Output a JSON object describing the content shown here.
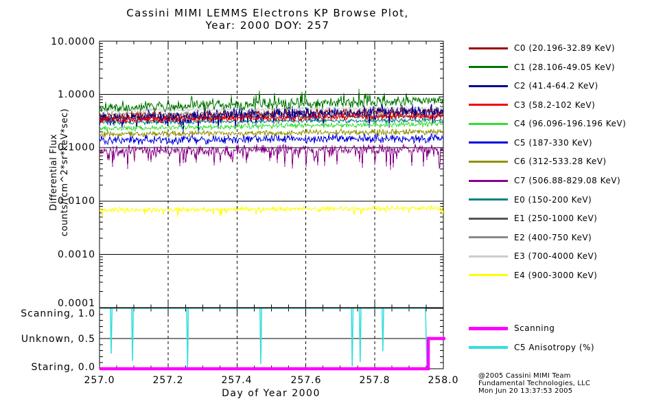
{
  "title": {
    "line1": "Cassini MIMI LEMMS Electrons KP Browse Plot,",
    "line2": "Year: 2000 DOY: 257"
  },
  "flux_axis": {
    "label_line1": "Differential Flux",
    "label_line2": "counts/(cm^2*sr*keV*sec)",
    "ticks": [
      "10.0000",
      "1.0000",
      "0.1000",
      "0.0100",
      "0.0010",
      "0.0001"
    ]
  },
  "x_axis": {
    "label": "Day of Year 2000",
    "ticks": [
      "257.0",
      "257.2",
      "257.4",
      "257.6",
      "257.8",
      "258.0"
    ]
  },
  "mode_axis": {
    "ticks": [
      "Scanning, 1.0",
      "Unknown, 0.5",
      "Staring, 0.0"
    ]
  },
  "legend": [
    {
      "name": "C0",
      "label": "C0 (20.196-32.89 KeV)",
      "color": "#990000"
    },
    {
      "name": "C1",
      "label": "C1 (28.106-49.05 KeV)",
      "color": "#007700"
    },
    {
      "name": "C2",
      "label": "C2 (41.4-64.2 KeV)",
      "color": "#000099"
    },
    {
      "name": "C3",
      "label": "C3 (58.2-102 KeV)",
      "color": "#EE0000"
    },
    {
      "name": "C4",
      "label": "C4 (96.096-196.196 KeV)",
      "color": "#33DD33"
    },
    {
      "name": "C5",
      "label": "C5 (187-330 KeV)",
      "color": "#0000DD"
    },
    {
      "name": "C6",
      "label": "C6 (312-533.28 KeV)",
      "color": "#909000"
    },
    {
      "name": "C7",
      "label": "C7 (506.88-829.08 KeV)",
      "color": "#880088"
    },
    {
      "name": "E0",
      "label": "E0 (150-200 KeV)",
      "color": "#008080"
    },
    {
      "name": "E1",
      "label": "E1 (250-1000 KeV)",
      "color": "#555555"
    },
    {
      "name": "E2",
      "label": "E2 (400-750 KeV)",
      "color": "#888888"
    },
    {
      "name": "E3",
      "label": "E3 (700-4000 KeV)",
      "color": "#CCCCCC"
    },
    {
      "name": "E4",
      "label": "E4 (900-3000 KeV)",
      "color": "#FFFF00"
    }
  ],
  "legend2": [
    {
      "name": "scanning",
      "label": "Scanning",
      "color": "#FF00FF"
    },
    {
      "name": "c5-anisotropy",
      "label": "C5 Anisotropy (%)",
      "color": "#33DDDD"
    }
  ],
  "credit": {
    "line1": "@2005 Cassini MIMI Team",
    "line2": "Fundamental Technologies, LLC",
    "line3": "Mon Jun 20 13:37:53 2005"
  },
  "chart_data": {
    "type": "line",
    "title": "Cassini MIMI LEMMS Electrons KP Browse Plot, Year: 2000 DOY: 257",
    "panels": [
      {
        "name": "differential-flux",
        "xlabel": "Day of Year 2000",
        "ylabel": "Differential Flux counts/(cm^2*sr*keV*sec)",
        "x_range": [
          257.0,
          258.0
        ],
        "y_scale": "log",
        "y_range": [
          0.0001,
          10.0
        ],
        "y_decade_gridlines": [
          1.0,
          0.1,
          0.01,
          0.001
        ],
        "x_dashed_gridlines": [
          257.2,
          257.4,
          257.6,
          257.8
        ],
        "description": "Noisy flat-to-slightly-rising flux time series for each energy channel; flux_start/flux_end are mean levels at DOY 257.0 and 258.0, noise_dex is half-spread in decades",
        "series": [
          {
            "name": "C0",
            "color": "#990000",
            "flux_start": 0.38,
            "flux_end": 0.48,
            "noise_dex": 0.1
          },
          {
            "name": "C1",
            "color": "#007700",
            "flux_start": 0.55,
            "flux_end": 0.78,
            "noise_dex": 0.12,
            "spike_p": 0.12,
            "spike_dex": 0.18,
            "spike_dir": 1
          },
          {
            "name": "C2",
            "color": "#000099",
            "flux_start": 0.35,
            "flux_end": 0.5,
            "noise_dex": 0.16,
            "spike_p": 0.05,
            "spike_dex": 0.3,
            "spike_dir": -1
          },
          {
            "name": "C3",
            "color": "#EE0000",
            "flux_start": 0.33,
            "flux_end": 0.4,
            "noise_dex": 0.08
          },
          {
            "name": "C4",
            "color": "#33DD33",
            "flux_start": 0.23,
            "flux_end": 0.28,
            "noise_dex": 0.06
          },
          {
            "name": "C5",
            "color": "#0000DD",
            "flux_start": 0.14,
            "flux_end": 0.15,
            "noise_dex": 0.1
          },
          {
            "name": "C6",
            "color": "#909000",
            "flux_start": 0.18,
            "flux_end": 0.2,
            "noise_dex": 0.07
          },
          {
            "name": "C7",
            "color": "#880088",
            "flux_start": 0.088,
            "flux_end": 0.096,
            "noise_dex": 0.11,
            "spike_p": 0.18,
            "spike_dex": 0.35,
            "spike_dir": -1
          },
          {
            "name": "E0",
            "color": "#008080",
            "flux_start": 0.3,
            "flux_end": 0.33,
            "noise_dex": 0.05,
            "mostly_hidden": true
          },
          {
            "name": "E1",
            "color": "#555555",
            "flux_start": 0.36,
            "flux_end": 0.4,
            "noise_dex": 0.05,
            "mostly_hidden": true
          },
          {
            "name": "E2",
            "color": "#888888",
            "flux_start": 0.42,
            "flux_end": 0.46,
            "noise_dex": 0.05,
            "mostly_hidden": true
          },
          {
            "name": "E3",
            "color": "#CCCCCC",
            "flux_start": 0.5,
            "flux_end": 0.55,
            "noise_dex": 0.05,
            "mostly_hidden": true
          },
          {
            "name": "E4",
            "color": "#FFFF00",
            "flux_start": 0.0068,
            "flux_end": 0.0074,
            "noise_dex": 0.05,
            "spike_p": 0.05,
            "spike_dex": 0.15,
            "spike_dir": -1
          }
        ]
      },
      {
        "name": "mode-anisotropy",
        "x_range": [
          257.0,
          258.0
        ],
        "y_range": [
          0.0,
          1.0
        ],
        "y_ticks": [
          {
            "label": "Scanning, 1.0",
            "value": 1.0
          },
          {
            "label": "Unknown, 0.5",
            "value": 0.5
          },
          {
            "label": "Staring, 0.0",
            "value": 0.0
          }
        ],
        "x_dashed_gridlines": [
          257.2,
          257.4,
          257.6,
          257.8
        ],
        "series": [
          {
            "name": "Scanning",
            "color": "#FF00FF",
            "type": "step",
            "points": [
              [
                257.0,
                0.0
              ],
              [
                257.956,
                0.0
              ],
              [
                257.956,
                0.5
              ],
              [
                258.0,
                0.5
              ]
            ]
          },
          {
            "name": "C5 Anisotropy (%)",
            "color": "#33DDDD",
            "type": "baseline-with-dips",
            "baseline": 1.0,
            "dips": [
              [
                257.034,
                0.25
              ],
              [
                257.096,
                0.13
              ],
              [
                257.256,
                0.02
              ],
              [
                257.469,
                0.08
              ],
              [
                257.735,
                0.04
              ],
              [
                257.758,
                0.11
              ],
              [
                257.824,
                0.29
              ]
            ],
            "end_drop": [
              257.952,
              0.05
            ]
          }
        ]
      }
    ]
  }
}
